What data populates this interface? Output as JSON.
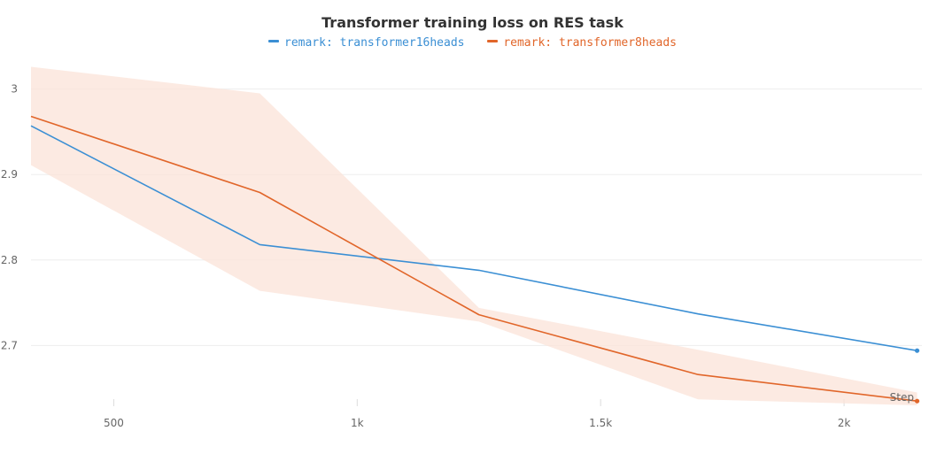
{
  "chart_data": {
    "type": "line",
    "title": "Transformer training loss on RES task",
    "xlabel": "Step",
    "ylabel": "",
    "grid": true,
    "legend_position": "top-center",
    "xlim": [
      330,
      2160
    ],
    "ylim": [
      2.63,
      3.04
    ],
    "x_ticks": [
      500,
      1000,
      1500,
      2000
    ],
    "x_tick_labels": [
      "500",
      "1k",
      "1.5k",
      "2k"
    ],
    "y_ticks": [
      2.7,
      2.8,
      2.9,
      3
    ],
    "y_tick_labels": [
      "2.7",
      "2.8",
      "2.9",
      "3"
    ],
    "series": [
      {
        "name": "remark: transformer16heads",
        "color": "#3b8fd4",
        "x": [
          330,
          800,
          1250,
          1700,
          2150
        ],
        "y": [
          2.957,
          2.818,
          2.788,
          2.737,
          2.694
        ]
      },
      {
        "name": "remark: transformer8heads",
        "color": "#e1662a",
        "band_color": "#fbe3d8",
        "x": [
          330,
          800,
          1250,
          1700,
          2150
        ],
        "y": [
          2.968,
          2.879,
          2.736,
          2.666,
          2.635
        ],
        "band_upper": [
          3.026,
          2.995,
          2.744,
          2.695,
          2.645
        ],
        "band_lower": [
          2.911,
          2.764,
          2.728,
          2.637,
          2.63
        ]
      }
    ]
  }
}
